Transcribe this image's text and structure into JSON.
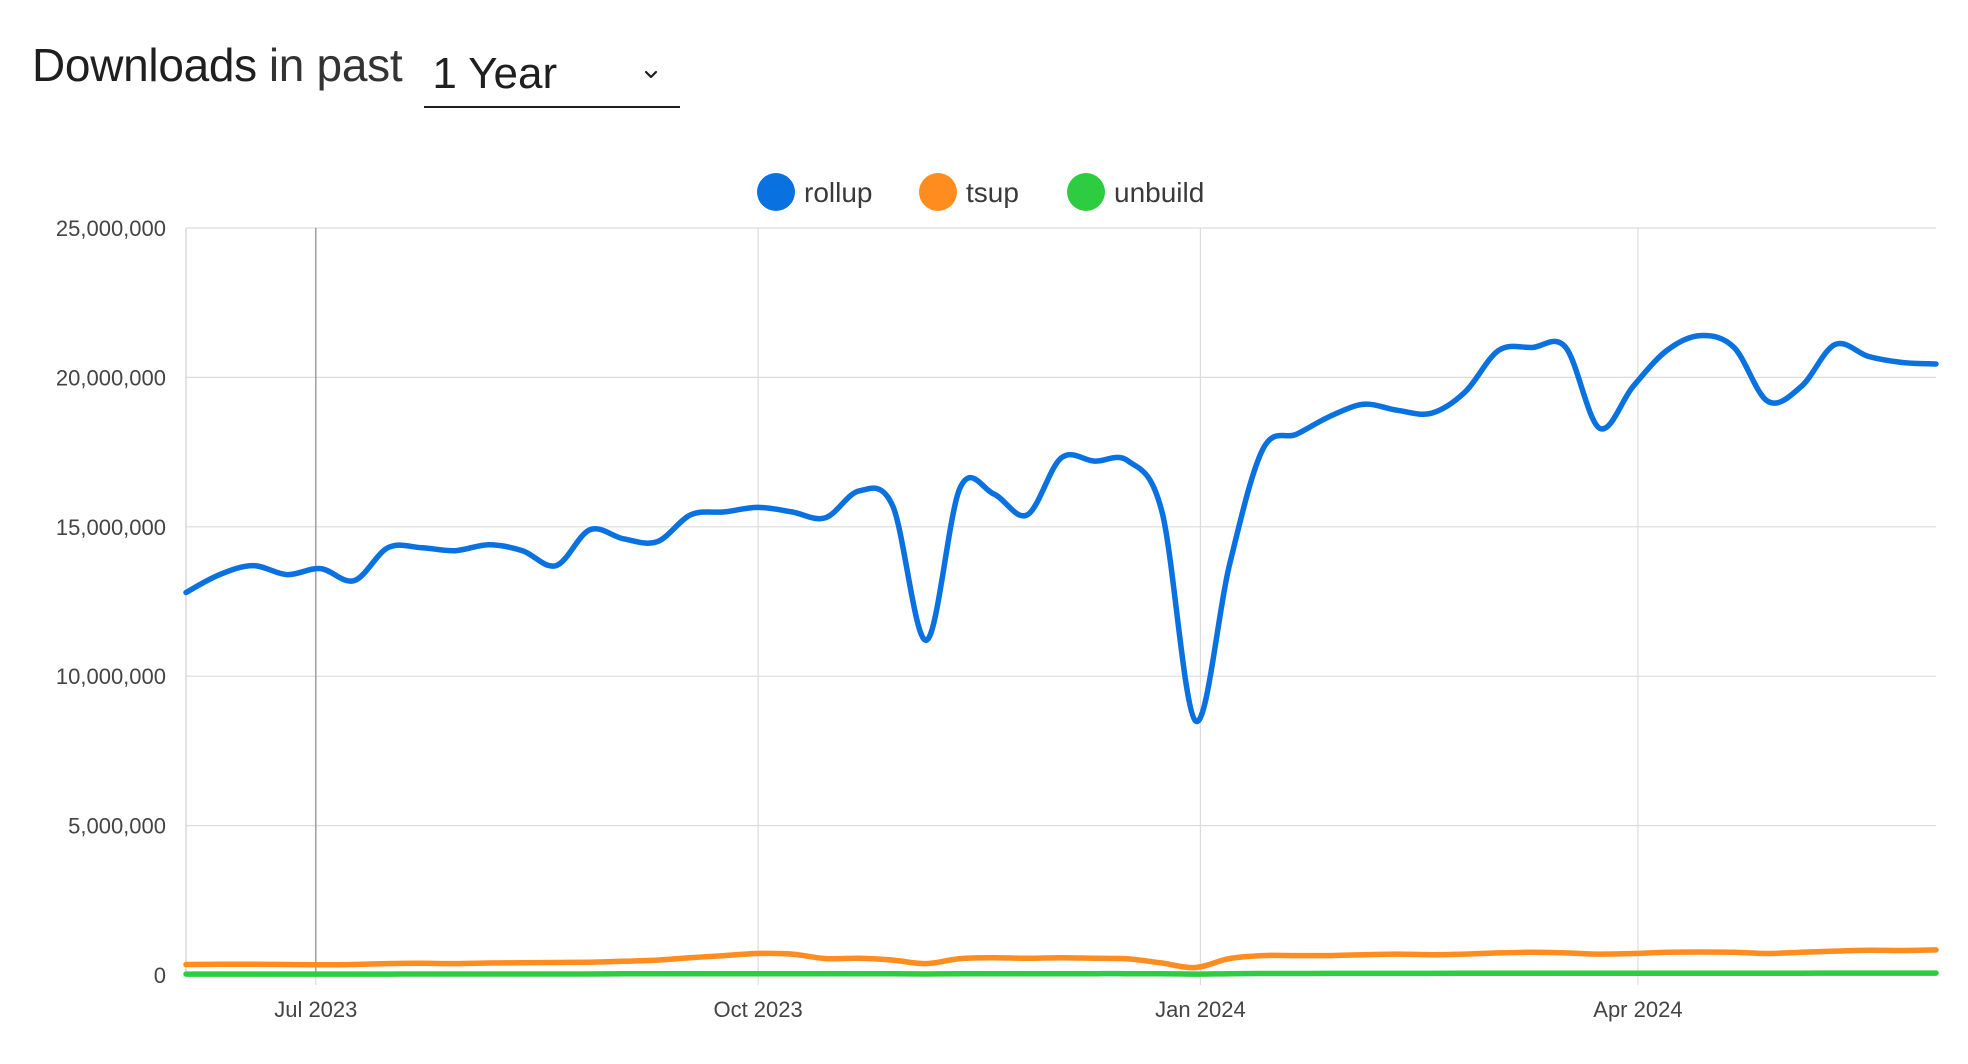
{
  "header": {
    "title_strong": "Downloads",
    "title_rest": "in past",
    "range_selected": "1 Year",
    "chevron_icon": "chevron-down-icon"
  },
  "chart_data": {
    "type": "line",
    "title": "",
    "xlabel": "",
    "ylabel": "",
    "ylim": [
      0,
      25000000
    ],
    "yticks": [
      0,
      5000000,
      10000000,
      15000000,
      20000000,
      25000000
    ],
    "ytick_labels": [
      "0",
      "5,000,000",
      "10,000,000",
      "15,000,000",
      "20,000,000",
      "25,000,000"
    ],
    "xlim": [
      "2023-06-04",
      "2024-06-02"
    ],
    "xticks": [
      {
        "label": "Jul 2023",
        "date": "2023-07-01"
      },
      {
        "label": "Oct 2023",
        "date": "2023-10-01"
      },
      {
        "label": "Jan 2024",
        "date": "2024-01-01"
      },
      {
        "label": "Apr 2024",
        "date": "2024-04-01"
      }
    ],
    "grid": true,
    "legend_position": "top-center",
    "x": [
      "2023-06-04",
      "2023-06-11",
      "2023-06-18",
      "2023-06-25",
      "2023-07-02",
      "2023-07-09",
      "2023-07-16",
      "2023-07-23",
      "2023-07-30",
      "2023-08-06",
      "2023-08-13",
      "2023-08-20",
      "2023-08-27",
      "2023-09-03",
      "2023-09-10",
      "2023-09-17",
      "2023-09-24",
      "2023-10-01",
      "2023-10-08",
      "2023-10-15",
      "2023-10-22",
      "2023-10-29",
      "2023-11-05",
      "2023-11-12",
      "2023-11-19",
      "2023-11-26",
      "2023-12-03",
      "2023-12-10",
      "2023-12-17",
      "2023-12-24",
      "2023-12-31",
      "2024-01-07",
      "2024-01-14",
      "2024-01-21",
      "2024-01-28",
      "2024-02-04",
      "2024-02-11",
      "2024-02-18",
      "2024-02-25",
      "2024-03-03",
      "2024-03-10",
      "2024-03-17",
      "2024-03-24",
      "2024-03-31",
      "2024-04-07",
      "2024-04-14",
      "2024-04-21",
      "2024-04-28",
      "2024-05-05",
      "2024-05-12",
      "2024-05-19",
      "2024-05-26",
      "2024-06-02"
    ],
    "series": [
      {
        "name": "rollup",
        "color": "#0a71e0",
        "values": [
          12800000,
          13400000,
          13700000,
          13400000,
          13600000,
          13200000,
          14300000,
          14300000,
          14200000,
          14400000,
          14200000,
          13700000,
          14900000,
          14600000,
          14500000,
          15400000,
          15500000,
          15650000,
          15500000,
          15300000,
          16200000,
          15700000,
          11200000,
          16300000,
          16100000,
          15400000,
          17300000,
          17200000,
          17200000,
          15500000,
          8500000,
          13700000,
          17600000,
          18100000,
          18700000,
          19100000,
          18900000,
          18800000,
          19500000,
          20900000,
          21000000,
          21000000,
          18300000,
          19700000,
          20900000,
          21400000,
          21000000,
          19200000,
          19700000,
          21100000,
          20700000,
          20500000,
          20450000
        ]
      },
      {
        "name": "tsup",
        "color": "#ff8c1f",
        "values": [
          350000,
          360000,
          360000,
          350000,
          340000,
          350000,
          380000,
          390000,
          380000,
          400000,
          410000,
          420000,
          430000,
          460000,
          500000,
          580000,
          650000,
          720000,
          700000,
          550000,
          560000,
          500000,
          380000,
          550000,
          580000,
          560000,
          580000,
          560000,
          540000,
          400000,
          250000,
          550000,
          650000,
          650000,
          650000,
          680000,
          700000,
          680000,
          700000,
          740000,
          760000,
          740000,
          700000,
          720000,
          760000,
          770000,
          760000,
          720000,
          760000,
          800000,
          830000,
          820000,
          840000
        ]
      },
      {
        "name": "unbuild",
        "color": "#2ecc40",
        "values": [
          30000,
          30000,
          30000,
          30000,
          30000,
          30000,
          30000,
          35000,
          35000,
          35000,
          35000,
          35000,
          35000,
          40000,
          40000,
          40000,
          40000,
          40000,
          40000,
          40000,
          40000,
          40000,
          35000,
          45000,
          45000,
          45000,
          45000,
          45000,
          45000,
          40000,
          30000,
          45000,
          50000,
          50000,
          55000,
          55000,
          55000,
          55000,
          60000,
          60000,
          60000,
          60000,
          60000,
          60000,
          60000,
          60000,
          60000,
          60000,
          60000,
          65000,
          65000,
          65000,
          65000
        ]
      }
    ]
  }
}
